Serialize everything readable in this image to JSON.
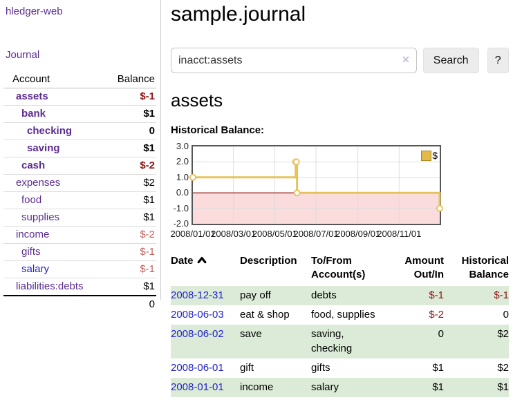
{
  "app": {
    "brand": "hledger-web",
    "nav": {
      "journal": "Journal"
    }
  },
  "colors": {
    "link_purple": "#5c2d91",
    "link_blue": "#2222cc",
    "negative_strong": "#8f1515",
    "negative_soft": "#c0625f",
    "row_green": "#dcebd7",
    "chart_line_gold": "#e7c35f",
    "chart_negative_fill": "#fadcdc",
    "chart_zero_line": "#8b0000"
  },
  "sidebar": {
    "accounts_table": {
      "headers": {
        "account": "Account",
        "balance": "Balance"
      },
      "rows": [
        {
          "name": "assets",
          "balance": "$-1"
        },
        {
          "name": "bank",
          "balance": "$1"
        },
        {
          "name": "checking",
          "balance": "0"
        },
        {
          "name": "saving",
          "balance": "$1"
        },
        {
          "name": "cash",
          "balance": "$-2"
        },
        {
          "name": "expenses",
          "balance": "$2"
        },
        {
          "name": "food",
          "balance": "$1"
        },
        {
          "name": "supplies",
          "balance": "$1"
        },
        {
          "name": "income",
          "balance": "$-2"
        },
        {
          "name": "gifts",
          "balance": "$-1"
        },
        {
          "name": "salary",
          "balance": "$-1"
        },
        {
          "name": "liabilities:debts",
          "balance": "$1"
        }
      ],
      "total": "0"
    }
  },
  "header": {
    "title": "sample.journal"
  },
  "search": {
    "value": "inacct:assets",
    "clear_icon": "✕",
    "button_label": "Search",
    "help_label": "?"
  },
  "account_page": {
    "heading": "assets",
    "chart_label": "Historical Balance:"
  },
  "chart_data": {
    "type": "line",
    "style": "steps",
    "title": "Historical Balance:",
    "series": [
      {
        "name": "$",
        "color": "#e7c35f",
        "points": [
          [
            "2008-01-01",
            1
          ],
          [
            "2008-06-01",
            2
          ],
          [
            "2008-06-02",
            2
          ],
          [
            "2008-06-03",
            0
          ],
          [
            "2008-12-31",
            -1
          ]
        ]
      }
    ],
    "x_range": [
      "2008-01-01",
      "2008-12-31"
    ],
    "ylim": [
      -2,
      3
    ],
    "y_ticks": [
      "3.0",
      "2.0",
      "1.0",
      "0.0",
      "-1.0",
      "-2.0"
    ],
    "x_ticks": [
      {
        "date": "2008-01-01",
        "label": "2008/01/01"
      },
      {
        "date": "2008-03-01",
        "label": "2008/03/01"
      },
      {
        "date": "2008-05-01",
        "label": "2008/05/01"
      },
      {
        "date": "2008-07-01",
        "label": "2008/07/01"
      },
      {
        "date": "2008-09-01",
        "label": "2008/09/01"
      },
      {
        "date": "2008-11-01",
        "label": "2008/11/01"
      }
    ],
    "grid": true,
    "legend": {
      "label": "$",
      "position": "top-right"
    },
    "negative_region_fill": "#fadcdc",
    "zero_line_color": "#8b0000"
  },
  "table": {
    "sort": "asc",
    "headers": {
      "date": "Date",
      "date_sort_icon": "chevron-up",
      "description": "Description",
      "accounts": "To/From Account(s)",
      "amount": "Amount Out/In",
      "balance": "Historical Balance"
    },
    "rows": [
      {
        "date": "2008-12-31",
        "description": "pay off",
        "accounts": "debts",
        "amount": "$-1",
        "balance": "$-1"
      },
      {
        "date": "2008-06-03",
        "description": "eat & shop",
        "accounts": "food, supplies",
        "amount": "$-2",
        "balance": "0"
      },
      {
        "date": "2008-06-02",
        "description": "save",
        "accounts": "saving, checking",
        "amount": "0",
        "balance": "$2"
      },
      {
        "date": "2008-06-01",
        "description": "gift",
        "accounts": "gifts",
        "amount": "$1",
        "balance": "$2"
      },
      {
        "date": "2008-01-01",
        "description": "income",
        "accounts": "salary",
        "amount": "$1",
        "balance": "$1"
      }
    ]
  }
}
